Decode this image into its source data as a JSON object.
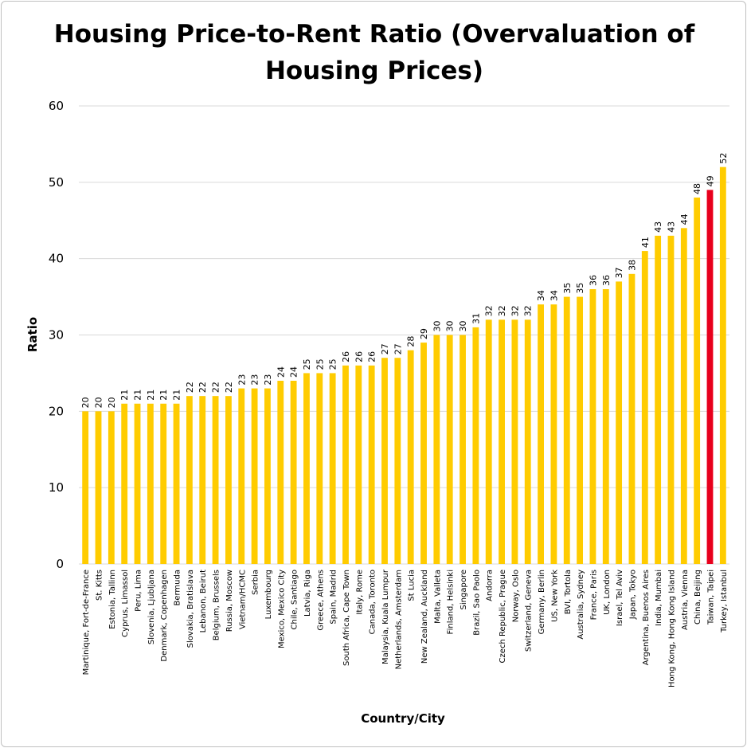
{
  "chart_data": {
    "type": "bar",
    "title": "Housing Price-to-Rent Ratio (Overvaluation of Housing Prices)",
    "xlabel": "Country/City",
    "ylabel": "Ratio",
    "ylim": [
      0,
      60
    ],
    "yticks": [
      0,
      10,
      20,
      30,
      40,
      50,
      60
    ],
    "grid": true,
    "legend": "none",
    "bar_color": "#FFCC00",
    "highlight_color": "#E8001C",
    "highlight_category": "Taiwan, Taipei",
    "categories": [
      "Martinique, Fort-de-France",
      "St. Kitts",
      "Estonia, Tallinn",
      "Cyprus, Limassol",
      "Peru, Lima",
      "Slovenia, Ljubljana",
      "Denmark, Copenhagen",
      "Bermuda",
      "Slovakia, Bratislava",
      "Lebanon, Beirut",
      "Belgium, Brussels",
      "Russia, Moscow",
      "Vietnam/HCMC",
      "Serbia",
      "Luxembourg",
      "Mexico, Mexico City",
      "Chile, Santiago",
      "Latvia, Riga",
      "Greece, Athens",
      "Spain, Madrid",
      "South Africa, Cape Town",
      "Italy, Rome",
      "Canada, Toronto",
      "Malaysia, Kuala Lumpur",
      "Netherlands, Amsterdam",
      "St Lucia",
      "New Zealand, Auckland",
      "Malta, Valleta",
      "Finland, Helsinki",
      "Singapore",
      "Brazil, Sao Paolo",
      "Andorra",
      "Czech Republic, Prague",
      "Norway, Oslo",
      "Switzerland, Geneva",
      "Germany, Berlin",
      "US, New York",
      "BVI, Tortola",
      "Australia, Sydney",
      "France, Paris",
      "UK, London",
      "Israel, Tel Aviv",
      "Japan, Tokyo",
      "Argentina, Buenos Aires",
      "India, Mumbai",
      "Hong Kong, Hong Kong Island",
      "Austria, Vienna",
      "China, Beijing",
      "Taiwan, Taipei",
      "Turkey, Istanbul"
    ],
    "values": [
      20,
      20,
      20,
      21,
      21,
      21,
      21,
      21,
      22,
      22,
      22,
      22,
      23,
      23,
      23,
      24,
      24,
      25,
      25,
      25,
      26,
      26,
      26,
      27,
      27,
      28,
      29,
      30,
      30,
      30,
      31,
      32,
      32,
      32,
      32,
      34,
      34,
      35,
      35,
      36,
      36,
      37,
      38,
      41,
      43,
      43,
      44,
      48,
      49,
      52
    ]
  }
}
